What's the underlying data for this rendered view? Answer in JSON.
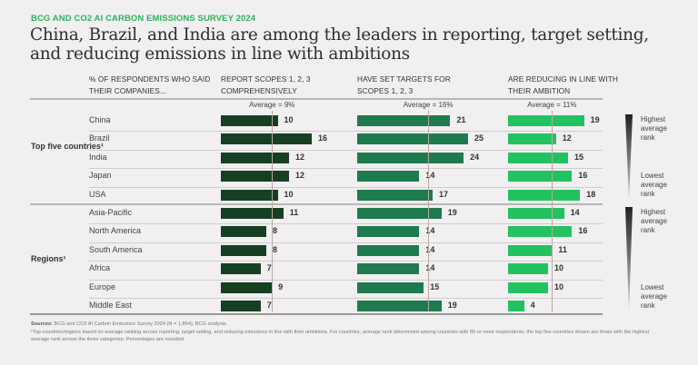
{
  "kicker": "BCG AND CO2 AI CARBON EMISSIONS SURVEY 2024",
  "title": "China, Brazil, and India are among the leaders in reporting, target setting, and reducing emissions in line with ambitions",
  "label_header": "% OF RESPONDENTS WHO SAID THEIR COMPANIES...",
  "colors": {
    "report": "#163f23",
    "targets": "#1e7a4f",
    "reducing": "#23c260",
    "kicker": "#2bb45f"
  },
  "legend": {
    "highest": "Highest average rank",
    "lowest": "Lowest average rank"
  },
  "footnotes": {
    "sources_label": "Sources:",
    "sources": "BCG and CO2 AI Carbon Emissions Survey 2024 (N = 1,864); BCG analysis.",
    "note": "¹Top countries/regions based on average ranking across reporting, target setting, and reducing emissions in line with their ambitions. For countries, average rank determined among countries with 80 or more respondents; the top five countries shown are those with the highest average rank across the three categories. Percentages are rounded."
  },
  "chart_data": {
    "type": "bar",
    "orientation": "horizontal",
    "title": "China, Brazil, and India are among the leaders in reporting, target setting, and reducing emissions in line with ambitions",
    "groups": [
      {
        "name": "Top five countries¹",
        "categories": [
          "China",
          "Brazil",
          "India",
          "Japan",
          "USA"
        ]
      },
      {
        "name": "Regions¹",
        "categories": [
          "Asia-Pacific",
          "North America",
          "South America",
          "Africa",
          "Europe",
          "Middle East"
        ]
      }
    ],
    "categories": [
      "China",
      "Brazil",
      "India",
      "Japan",
      "USA",
      "Asia-Pacific",
      "North America",
      "South America",
      "Africa",
      "Europe",
      "Middle East"
    ],
    "series": [
      {
        "name": "REPORT SCOPES 1, 2, 3 COMPREHENSIVELY",
        "average_label": "Average = 9%",
        "average": 9,
        "values": [
          10,
          16,
          12,
          12,
          10,
          11,
          8,
          8,
          7,
          9,
          7
        ]
      },
      {
        "name": "HAVE SET TARGETS FOR SCOPES 1, 2, 3",
        "average_label": "Average = 16%",
        "average": 16,
        "values": [
          21,
          25,
          24,
          14,
          17,
          19,
          14,
          14,
          14,
          15,
          19
        ]
      },
      {
        "name": "ARE REDUCING IN LINE WITH THEIR AMBITION",
        "average_label": "Average = 11%",
        "average": 11,
        "values": [
          19,
          12,
          15,
          16,
          18,
          14,
          16,
          11,
          10,
          10,
          4
        ]
      }
    ],
    "units": "%",
    "xlabel": "% OF RESPONDENTS WHO SAID THEIR COMPANIES...",
    "ylabel": "",
    "grid": false
  }
}
